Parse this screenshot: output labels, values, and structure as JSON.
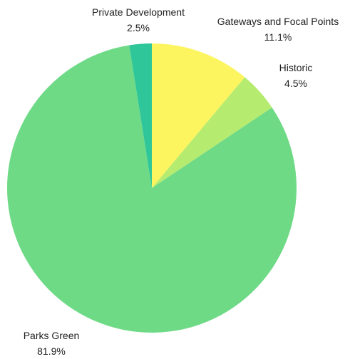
{
  "chart_data": {
    "type": "pie",
    "title": "",
    "start_angle_deg": 0,
    "direction": "clockwise",
    "slices": [
      {
        "label": "Gateways and Focal Points",
        "value": 11.1,
        "value_label": "11.1%",
        "color": "#FCF55F"
      },
      {
        "label": "Historic",
        "value": 4.5,
        "value_label": "4.5%",
        "color": "#B5EB6E"
      },
      {
        "label": "Parks Green",
        "value": 81.9,
        "value_label": "81.9%",
        "color": "#6EDA86"
      },
      {
        "label": "Private Development",
        "value": 2.5,
        "value_label": "2.5%",
        "color": "#2FC79A"
      }
    ]
  }
}
